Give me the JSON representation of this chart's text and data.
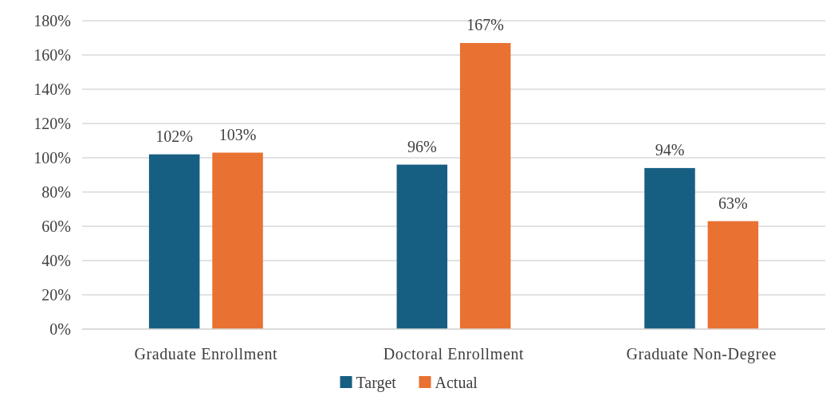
{
  "chart_data": {
    "type": "bar",
    "categories": [
      "Graduate Enrollment",
      "Doctoral Enrollment",
      "Graduate Non-Degree"
    ],
    "series": [
      {
        "name": "Target",
        "color": "#175f82",
        "values": [
          102,
          96,
          94
        ],
        "value_labels": [
          "102%",
          "96%",
          "94%"
        ]
      },
      {
        "name": "Actual",
        "color": "#e97132",
        "values": [
          103,
          167,
          63
        ],
        "value_labels": [
          "103%",
          "167%",
          "63%"
        ]
      }
    ],
    "ylim": [
      0,
      180
    ],
    "yticks": [
      {
        "value": 0,
        "label": "0%"
      },
      {
        "value": 20,
        "label": "20%"
      },
      {
        "value": 40,
        "label": "40%"
      },
      {
        "value": 60,
        "label": "60%"
      },
      {
        "value": 80,
        "label": "80%"
      },
      {
        "value": 100,
        "label": "100%"
      },
      {
        "value": 120,
        "label": "120%"
      },
      {
        "value": 140,
        "label": "140%"
      },
      {
        "value": 160,
        "label": "160%"
      },
      {
        "value": 180,
        "label": "180%"
      }
    ],
    "grid": "y",
    "legend": "bottom"
  }
}
